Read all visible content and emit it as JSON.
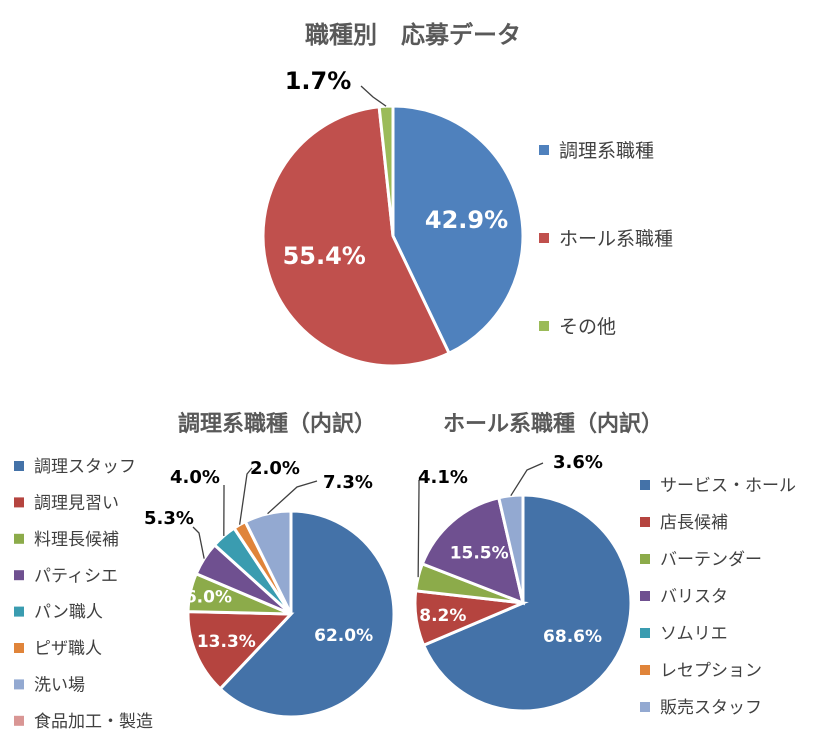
{
  "chart_data": [
    {
      "type": "pie",
      "title": "職種別　応募データ",
      "categories": [
        "調理系職種",
        "ホール系職種",
        "その他"
      ],
      "values": [
        42.9,
        55.4,
        1.7
      ],
      "labels": [
        "42.9%",
        "55.4%",
        "1.7%"
      ],
      "colors": [
        "#4f81bd",
        "#c0504d",
        "#9bbb59"
      ],
      "legend_position": "right"
    },
    {
      "type": "pie",
      "title": "調理系職種（内訳）",
      "categories": [
        "調理スタッフ",
        "調理見習い",
        "料理長候補",
        "パティシエ",
        "パン職人",
        "ピザ職人",
        "洗い場",
        "食品加工・製造"
      ],
      "values": [
        62.0,
        13.3,
        6.0,
        5.3,
        4.0,
        2.0,
        7.3,
        0
      ],
      "labels": [
        "62.0%",
        "13.3%",
        "6.0%",
        "5.3%",
        "4.0%",
        "2.0%",
        "7.3%",
        ""
      ],
      "colors": [
        "#4472a8",
        "#b5443f",
        "#8cab4a",
        "#6f5090",
        "#3a9cb0",
        "#e0843a",
        "#93a9d1",
        "#d99694"
      ],
      "legend_position": "left"
    },
    {
      "type": "pie",
      "title": "ホール系職種（内訳）",
      "categories": [
        "サービス・ホール",
        "店長候補",
        "バーテンダー",
        "バリスタ",
        "ソムリエ",
        "レセプション",
        "販売スタッフ"
      ],
      "values": [
        68.6,
        8.2,
        4.1,
        15.5,
        0,
        0,
        3.6
      ],
      "labels": [
        "68.6%",
        "8.2%",
        "4.1%",
        "15.5%",
        "",
        "",
        "3.6%"
      ],
      "colors": [
        "#4472a8",
        "#b5443f",
        "#8cab4a",
        "#6f5090",
        "#3a9cb0",
        "#e0843a",
        "#93a9d1"
      ],
      "legend_position": "right"
    }
  ]
}
